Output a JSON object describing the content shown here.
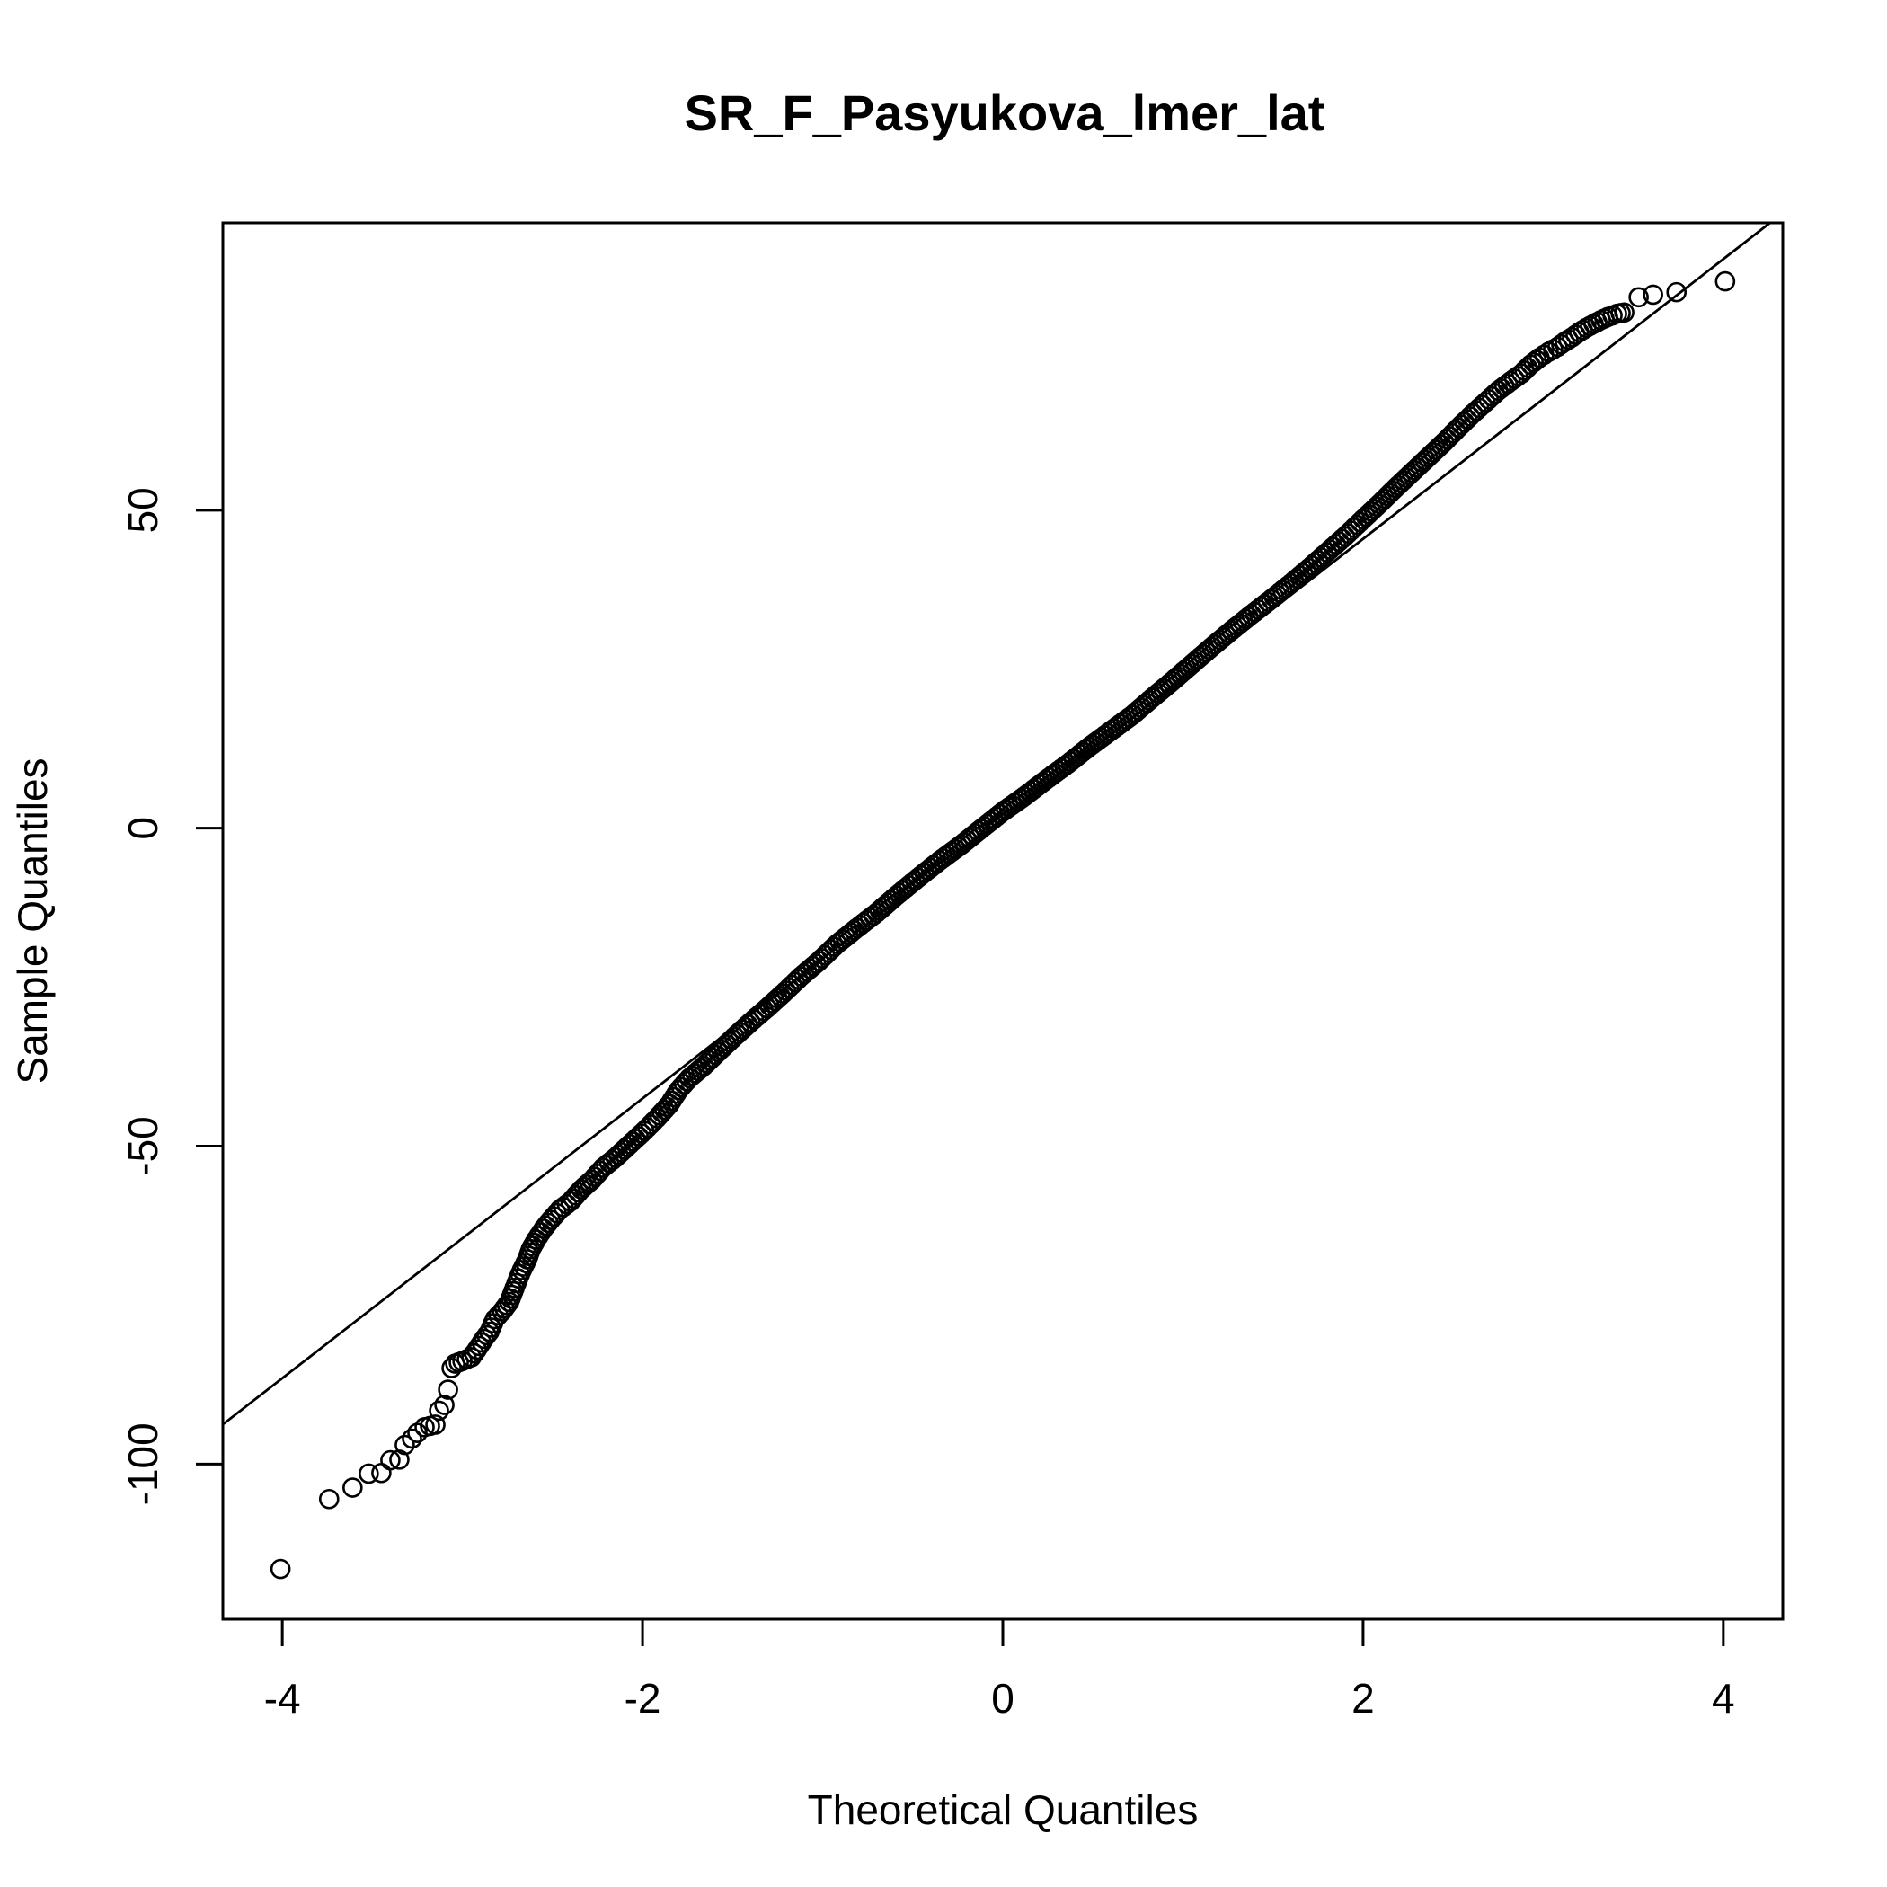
{
  "chart_data": {
    "type": "scatter",
    "title": "SR_F_Pasyukova_lmer_lat",
    "xlabel": "Theoretical Quantiles",
    "ylabel": "Sample Quantiles",
    "xlim": [
      -4.33,
      4.33
    ],
    "ylim": [
      -124.4,
      95.2
    ],
    "x_ticks": [
      -4,
      -2,
      0,
      2,
      4
    ],
    "x_tick_labels": [
      "-4",
      "-2",
      "0",
      "2",
      "4"
    ],
    "y_ticks": [
      -100,
      -50,
      0,
      50
    ],
    "y_tick_labels": [
      "-100",
      "-50",
      "0",
      "50"
    ],
    "grid": false,
    "reference_line": {
      "slope": 22.0,
      "intercept": 1.5
    },
    "series": [
      {
        "marker": "open-circle",
        "points": [
          [
            -4.01,
            -116.5
          ],
          [
            -3.74,
            -105.5
          ],
          [
            -3.61,
            -103.7
          ],
          [
            -3.52,
            -101.5
          ],
          [
            -3.45,
            -101.4
          ],
          [
            -3.4,
            -99.4
          ],
          [
            -3.35,
            -99.3
          ],
          [
            -3.32,
            -97.0
          ],
          [
            -3.28,
            -96.0
          ],
          [
            -3.25,
            -95.1
          ],
          [
            -3.21,
            -94.2
          ],
          [
            -3.18,
            -94.0
          ],
          [
            -3.15,
            -93.8
          ],
          [
            -3.13,
            -91.6
          ],
          [
            -3.1,
            -90.7
          ],
          [
            -3.08,
            -88.3
          ],
          [
            -3.06,
            -84.9
          ],
          [
            -3.04,
            -84.2
          ],
          [
            -3.0,
            -83.8
          ],
          [
            -2.95,
            -83.2
          ],
          [
            -2.92,
            -82.0
          ],
          [
            -2.88,
            -80.3
          ],
          [
            -2.85,
            -79.2
          ],
          [
            -2.82,
            -77.2
          ],
          [
            -2.78,
            -76.0
          ],
          [
            -2.74,
            -74.5
          ],
          [
            -2.71,
            -72.3
          ],
          [
            -2.69,
            -70.8
          ],
          [
            -2.67,
            -69.5
          ],
          [
            -2.64,
            -67.8
          ],
          [
            -2.62,
            -66.2
          ],
          [
            -2.59,
            -64.7
          ],
          [
            -2.55,
            -63.0
          ],
          [
            -2.51,
            -61.6
          ],
          [
            -2.46,
            -60.0
          ],
          [
            -2.4,
            -58.7
          ],
          [
            -2.34,
            -56.8
          ],
          [
            -2.28,
            -55.3
          ],
          [
            -2.22,
            -53.4
          ],
          [
            -2.15,
            -51.8
          ],
          [
            -2.07,
            -49.7
          ],
          [
            -1.99,
            -47.6
          ],
          [
            -1.92,
            -45.6
          ],
          [
            -1.85,
            -43.4
          ],
          [
            -1.8,
            -41.2
          ],
          [
            -1.74,
            -39.3
          ],
          [
            -1.66,
            -37.4
          ],
          [
            -1.58,
            -35.2
          ],
          [
            -1.49,
            -32.8
          ],
          [
            -1.4,
            -30.5
          ],
          [
            -1.31,
            -28.3
          ],
          [
            -1.22,
            -26.0
          ],
          [
            -1.12,
            -23.3
          ],
          [
            -1.02,
            -20.9
          ],
          [
            -0.92,
            -18.2
          ],
          [
            -0.81,
            -15.7
          ],
          [
            -0.7,
            -13.3
          ],
          [
            -0.59,
            -10.6
          ],
          [
            -0.47,
            -7.8
          ],
          [
            -0.35,
            -5.1
          ],
          [
            -0.23,
            -2.6
          ],
          [
            -0.12,
            -0.1
          ],
          [
            0.0,
            2.6
          ],
          [
            0.12,
            5.0
          ],
          [
            0.24,
            7.6
          ],
          [
            0.36,
            10.1
          ],
          [
            0.48,
            12.8
          ],
          [
            0.6,
            15.3
          ],
          [
            0.72,
            17.8
          ],
          [
            0.83,
            20.5
          ],
          [
            0.94,
            23.1
          ],
          [
            1.05,
            25.8
          ],
          [
            1.16,
            28.5
          ],
          [
            1.27,
            31.1
          ],
          [
            1.38,
            33.6
          ],
          [
            1.49,
            36.0
          ],
          [
            1.6,
            38.5
          ],
          [
            1.7,
            40.9
          ],
          [
            1.8,
            43.4
          ],
          [
            1.9,
            45.9
          ],
          [
            2.0,
            48.6
          ],
          [
            2.09,
            51.0
          ],
          [
            2.18,
            53.5
          ],
          [
            2.27,
            55.9
          ],
          [
            2.36,
            58.3
          ],
          [
            2.45,
            60.7
          ],
          [
            2.53,
            63.0
          ],
          [
            2.61,
            65.2
          ],
          [
            2.68,
            67.0
          ],
          [
            2.75,
            68.8
          ],
          [
            2.82,
            70.3
          ],
          [
            2.88,
            71.5
          ],
          [
            2.93,
            72.9
          ],
          [
            2.98,
            74.0
          ],
          [
            3.03,
            74.9
          ],
          [
            3.08,
            75.7
          ],
          [
            3.12,
            76.5
          ],
          [
            3.16,
            77.2
          ],
          [
            3.2,
            78.0
          ],
          [
            3.24,
            78.7
          ],
          [
            3.28,
            79.3
          ],
          [
            3.32,
            79.9
          ],
          [
            3.36,
            80.4
          ],
          [
            3.41,
            80.9
          ],
          [
            3.45,
            81.1
          ],
          [
            3.53,
            83.5
          ],
          [
            3.61,
            83.9
          ],
          [
            3.74,
            84.3
          ],
          [
            4.01,
            86.0
          ]
        ]
      }
    ]
  }
}
